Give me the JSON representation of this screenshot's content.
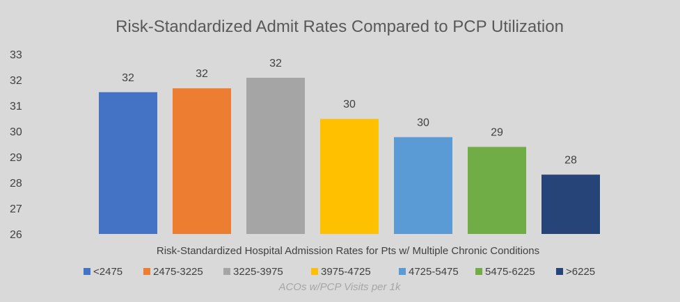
{
  "chart_data": {
    "type": "bar",
    "title": "Risk-Standardized Admit Rates Compared to PCP Utilization",
    "xlabel": "Risk-Standardized Hospital Admission Rates for Pts w/ Multiple Chronic Conditions",
    "ylabel": "",
    "legend_title": "ACOs w/PCP Visits per 1k",
    "legend_position": "bottom",
    "ylim": [
      26,
      33
    ],
    "yticks": [
      33,
      32,
      31,
      30,
      29,
      28,
      27,
      26
    ],
    "grid": false,
    "categories": [
      "<2475",
      "2475-3225",
      "3225-3975",
      "3975-4725",
      "4725-5475",
      "5475-6225",
      ">6225"
    ],
    "values": [
      31.52,
      31.67,
      32.08,
      30.48,
      29.77,
      29.39,
      28.31
    ],
    "data_labels": [
      "32",
      "32",
      "32",
      "30",
      "30",
      "29",
      "28"
    ],
    "colors": [
      "#4472c4",
      "#ed7d31",
      "#a5a5a5",
      "#ffc000",
      "#5b9bd5",
      "#70ad47",
      "#264478"
    ]
  }
}
